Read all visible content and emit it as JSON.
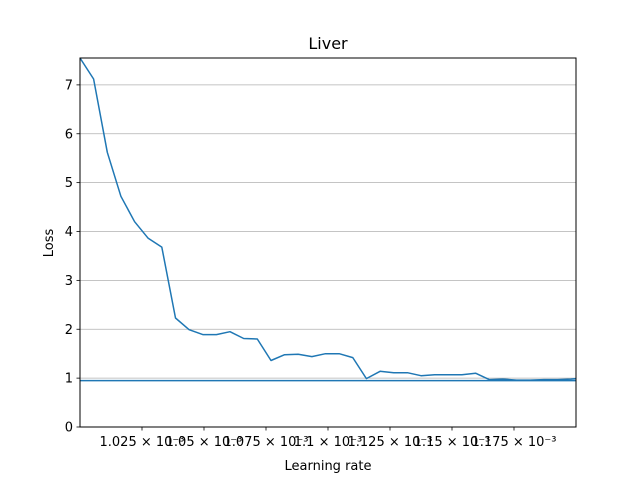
{
  "chart_data": {
    "type": "line",
    "title": "Liver",
    "xlabel": "Learning rate",
    "ylabel": "Loss",
    "xlim": [
      0.001,
      0.0012
    ],
    "ylim": [
      0,
      7.55
    ],
    "grid": "y-axis only",
    "series_color": "#1f77b4",
    "x_tick_values": [
      0.001025,
      0.00105,
      0.001075,
      0.0011,
      0.001125,
      0.00115,
      0.001175
    ],
    "x_tick_labels": [
      "1.025 × 10⁻³",
      "1.05 × 10⁻³",
      "1.075 × 10⁻³",
      "1.1 × 10⁻³",
      "1.125 × 10⁻³",
      "1.15 × 10⁻³",
      "1.175 × 10⁻³"
    ],
    "y_ticks": [
      0,
      1,
      2,
      3,
      4,
      5,
      6,
      7
    ],
    "hline": 0.95,
    "series": [
      {
        "x": [
          0.001,
          0.0010055,
          0.001011,
          0.0010165,
          0.001022,
          0.0010275,
          0.001033,
          0.0010385,
          0.001044,
          0.0010495,
          0.001055,
          0.0010605,
          0.001066,
          0.0010715,
          0.001077,
          0.0010825,
          0.001088,
          0.0010935,
          0.001099,
          0.0011045,
          0.00111,
          0.0011155,
          0.001121,
          0.0011265,
          0.001132,
          0.0011375,
          0.001143,
          0.0011485,
          0.001154,
          0.0011595,
          0.001165,
          0.0011705,
          0.001176,
          0.0011815,
          0.001187,
          0.0011925,
          0.001198,
          0.0012
        ],
        "y": [
          7.55,
          7.12,
          5.62,
          4.72,
          4.2,
          3.86,
          3.68,
          2.23,
          1.99,
          1.89,
          1.89,
          1.95,
          1.81,
          1.8,
          1.36,
          1.48,
          1.49,
          1.44,
          1.5,
          1.5,
          1.42,
          0.99,
          1.14,
          1.11,
          1.11,
          1.05,
          1.07,
          1.07,
          1.07,
          1.1,
          0.97,
          0.98,
          0.96,
          0.96,
          0.97,
          0.97,
          0.98,
          0.99
        ]
      }
    ]
  }
}
